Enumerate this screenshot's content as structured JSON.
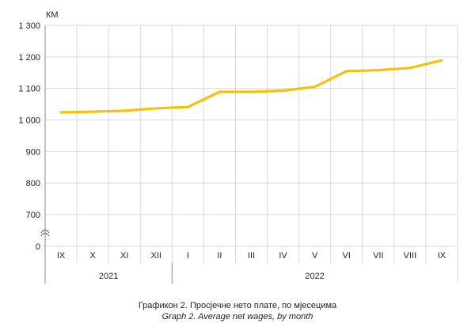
{
  "chart_data": {
    "type": "line",
    "unit_label": "КМ",
    "categories": [
      "IX",
      "X",
      "XI",
      "XII",
      "I",
      "II",
      "III",
      "IV",
      "V",
      "VI",
      "VII",
      "VIII",
      "IX"
    ],
    "years": [
      {
        "label": "2021",
        "start": 0,
        "end": 3
      },
      {
        "label": "2022",
        "start": 4,
        "end": 12
      }
    ],
    "series": [
      {
        "values": [
          1024,
          1026,
          1029,
          1037,
          1041,
          1089,
          1089,
          1093,
          1105,
          1155,
          1158,
          1165,
          1189
        ]
      }
    ],
    "y_ticks": [
      "1 300",
      "1 200",
      "1 100",
      "1 000",
      "900",
      "800",
      "700"
    ],
    "y_tick_values": [
      1300,
      1200,
      1100,
      1000,
      900,
      800,
      700
    ],
    "y_zero_label": "0",
    "axis_break": true,
    "ylim": [
      700,
      1300
    ],
    "grid": true,
    "line_color": "#f4c20d",
    "grid_color": "#d9d9d9",
    "title": "Графикон 2. Просјечне нето плате, по мјесецима",
    "subtitle": "Graph 2. Average net wages, by month"
  }
}
